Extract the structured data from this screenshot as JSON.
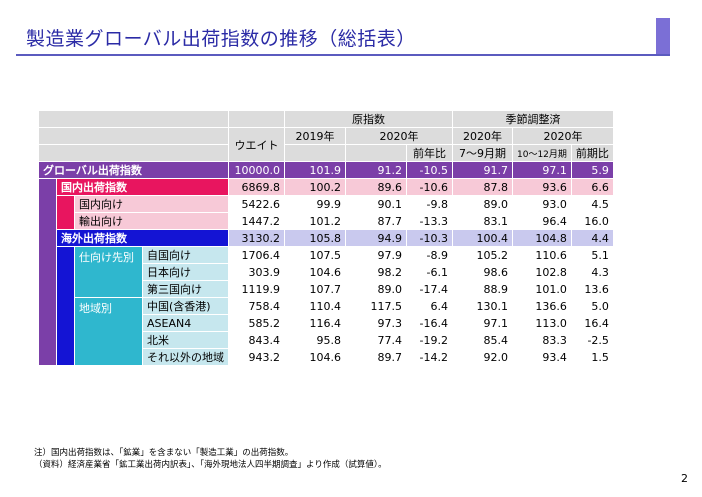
{
  "title": "製造業グローバル出荷指数の推移（総括表）",
  "header": {
    "weight": "ウエイト",
    "raw_index": "原指数",
    "seasonal": "季節調整済",
    "y2019": "2019年",
    "y2020a": "2020年",
    "y2020b": "2020年",
    "y2020c": "2020年",
    "yoy": "前年比",
    "jul_sep": "7～9月期",
    "oct_dec": "10～12月期",
    "qoq": "前期比"
  },
  "rows": [
    {
      "label": "グローバル出荷指数",
      "values": [
        "10000.0",
        "101.9",
        "91.2",
        "-10.5",
        "91.7",
        "97.1",
        "5.9"
      ]
    },
    {
      "label": "国内出荷指数",
      "values": [
        "6869.8",
        "100.2",
        "89.6",
        "-10.6",
        "87.8",
        "93.6",
        "6.6"
      ]
    },
    {
      "label": "国内向け",
      "values": [
        "5422.6",
        "99.9",
        "90.1",
        "-9.8",
        "89.0",
        "93.0",
        "4.5"
      ]
    },
    {
      "label": "輸出向け",
      "values": [
        "1447.2",
        "101.2",
        "87.7",
        "-13.3",
        "83.1",
        "96.4",
        "16.0"
      ]
    },
    {
      "label": "海外出荷指数",
      "values": [
        "3130.2",
        "105.8",
        "94.9",
        "-10.3",
        "100.4",
        "104.8",
        "4.4"
      ]
    },
    {
      "group": "仕向け先別",
      "label": "自国向け",
      "values": [
        "1706.4",
        "107.5",
        "97.9",
        "-8.9",
        "105.2",
        "110.6",
        "5.1"
      ]
    },
    {
      "label": "日本向け",
      "values": [
        "303.9",
        "104.6",
        "98.2",
        "-6.1",
        "98.6",
        "102.8",
        "4.3"
      ]
    },
    {
      "label": "第三国向け",
      "values": [
        "1119.9",
        "107.7",
        "89.0",
        "-17.4",
        "88.9",
        "101.0",
        "13.6"
      ]
    },
    {
      "group": "地域別",
      "label": "中国(含香港)",
      "values": [
        "758.4",
        "110.4",
        "117.5",
        "6.4",
        "130.1",
        "136.6",
        "5.0"
      ]
    },
    {
      "label": "ASEAN4",
      "values": [
        "585.2",
        "116.4",
        "97.3",
        "-16.4",
        "97.1",
        "113.0",
        "16.4"
      ]
    },
    {
      "label": "北米",
      "values": [
        "843.4",
        "95.8",
        "77.4",
        "-19.2",
        "85.4",
        "83.3",
        "-2.5"
      ]
    },
    {
      "label": "それ以外の地域",
      "values": [
        "943.2",
        "104.6",
        "89.7",
        "-14.2",
        "92.0",
        "93.4",
        "1.5"
      ]
    }
  ],
  "footnotes": [
    "注）国内出荷指数は、「鉱業」を含まない「製造工業」の出荷指数。",
    "（資料）経済産業省「鉱工業出荷内訳表」、「海外現地法人四半期調査」より作成（試算値）。"
  ],
  "page_number": "2",
  "colors": {
    "purple": "#7b3fa8",
    "pink": "#e8155f",
    "blue": "#1414d4",
    "cyan": "#2fb7ce"
  }
}
